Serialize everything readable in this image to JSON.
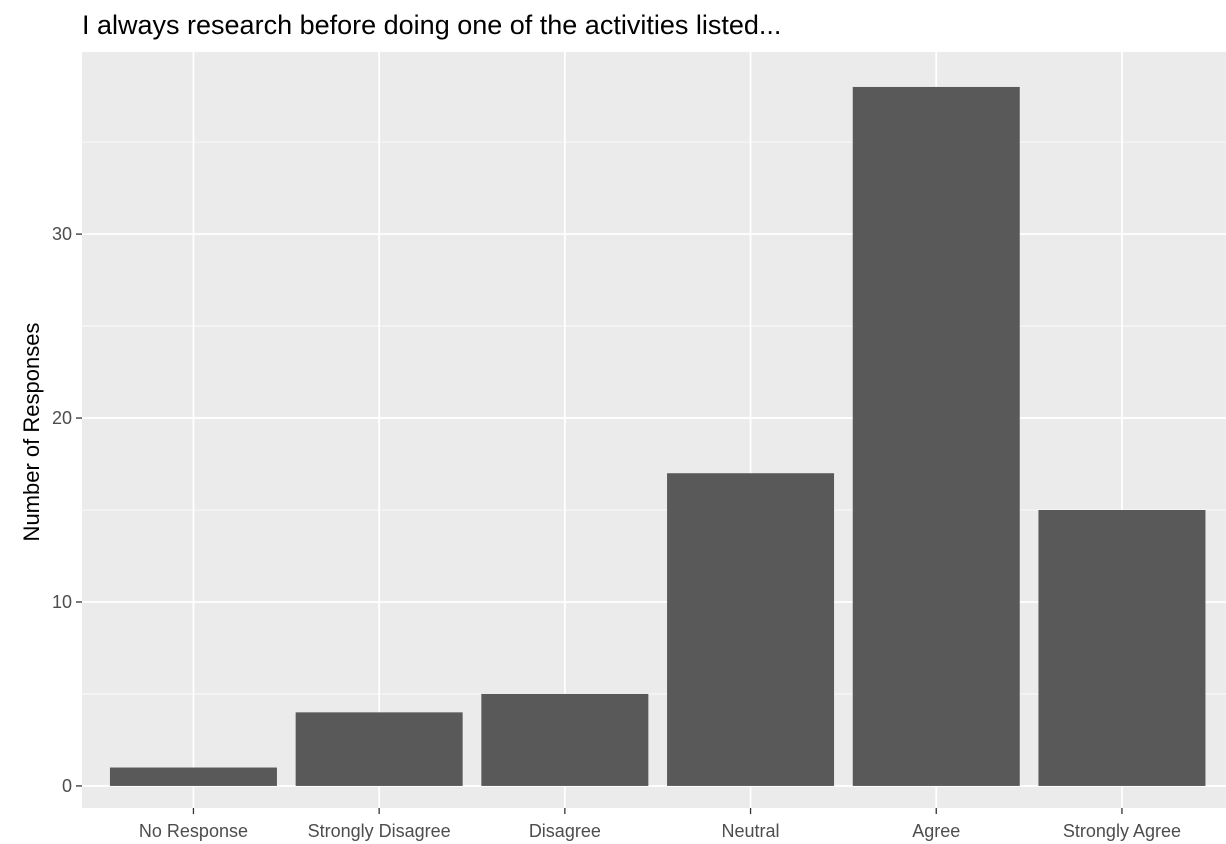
{
  "chart_data": {
    "type": "bar",
    "title": "I always research before doing one of the activities listed...",
    "xlabel": "",
    "ylabel": "Number of Responses",
    "categories": [
      "No Response",
      "Strongly Disagree",
      "Disagree",
      "Neutral",
      "Agree",
      "Strongly Agree"
    ],
    "values": [
      1,
      4,
      5,
      17,
      38,
      15
    ],
    "ylim": [
      -1.2,
      39.9
    ],
    "y_ticks": [
      0,
      10,
      20,
      30
    ],
    "y_tick_labels": [
      "0",
      "10",
      "20",
      "30"
    ],
    "grid": true,
    "legend": "none",
    "colors": {
      "bar": "#595959",
      "panel": "#ebebeb",
      "grid": "#ffffff",
      "tick_text": "#4d4d4d",
      "tick_mark": "#333333"
    }
  }
}
